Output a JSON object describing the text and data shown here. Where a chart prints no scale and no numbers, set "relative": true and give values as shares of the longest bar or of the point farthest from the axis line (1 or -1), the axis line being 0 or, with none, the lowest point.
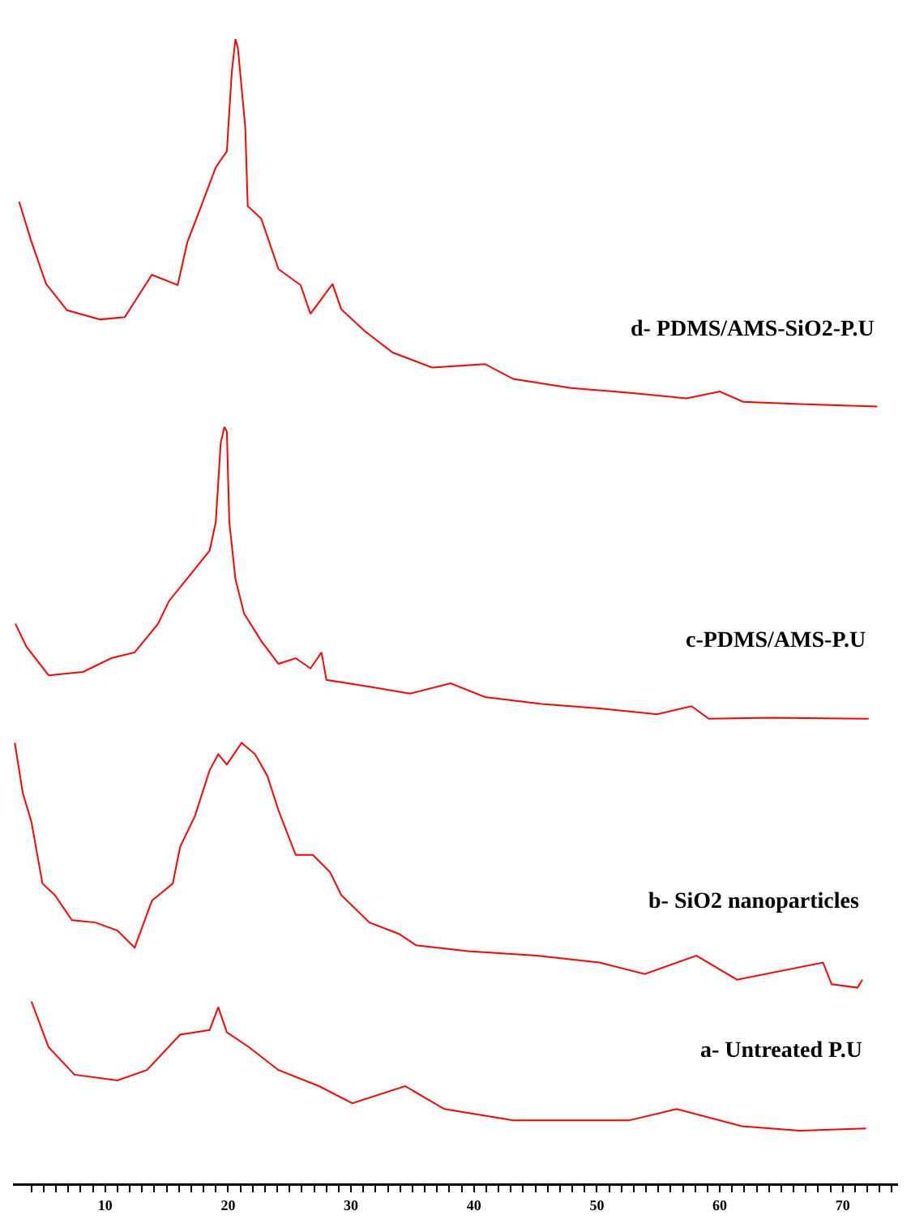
{
  "chart_data": {
    "type": "line",
    "relative": true,
    "grid": false,
    "legend": false,
    "marker": "none",
    "line_style": "solid",
    "xlim": [
      2.5,
      74.5
    ],
    "xticks": [
      {
        "value": 4,
        "label": null
      },
      {
        "value": 5,
        "label": null
      },
      {
        "value": 6,
        "label": null
      },
      {
        "value": 7,
        "label": null
      },
      {
        "value": 8,
        "label": null
      },
      {
        "value": 9,
        "label": null
      },
      10,
      {
        "value": 11,
        "label": null
      },
      {
        "value": 12,
        "label": null
      },
      {
        "value": 13,
        "label": null
      },
      {
        "value": 14,
        "label": null
      },
      {
        "value": 15,
        "label": null
      },
      {
        "value": 16,
        "label": null
      },
      {
        "value": 17,
        "label": null
      },
      {
        "value": 18,
        "label": null
      },
      {
        "value": 19,
        "label": null
      },
      20,
      {
        "value": 21,
        "label": null
      },
      {
        "value": 22,
        "label": null
      },
      {
        "value": 23,
        "label": null
      },
      {
        "value": 24,
        "label": null
      },
      {
        "value": 25,
        "label": null
      },
      {
        "value": 26,
        "label": null
      },
      {
        "value": 27,
        "label": null
      },
      {
        "value": 28,
        "label": null
      },
      {
        "value": 29,
        "label": null
      },
      30,
      {
        "value": 31,
        "label": null
      },
      {
        "value": 32,
        "label": null
      },
      {
        "value": 33,
        "label": null
      },
      {
        "value": 34,
        "label": null
      },
      {
        "value": 35,
        "label": null
      },
      {
        "value": 36,
        "label": null
      },
      {
        "value": 37,
        "label": null
      },
      {
        "value": 38,
        "label": null
      },
      {
        "value": 39,
        "label": null
      },
      40,
      {
        "value": 41,
        "label": null
      },
      {
        "value": 42,
        "label": null
      },
      {
        "value": 43,
        "label": null
      },
      {
        "value": 44,
        "label": null
      },
      {
        "value": 45,
        "label": null
      },
      {
        "value": 46,
        "label": null
      },
      {
        "value": 47,
        "label": null
      },
      {
        "value": 48,
        "label": null
      },
      {
        "value": 49,
        "label": null
      },
      50,
      {
        "value": 51,
        "label": null
      },
      {
        "value": 52,
        "label": null
      },
      {
        "value": 53,
        "label": null
      },
      {
        "value": 54,
        "label": null
      },
      {
        "value": 55,
        "label": null
      },
      {
        "value": 56,
        "label": null
      },
      {
        "value": 57,
        "label": null
      },
      {
        "value": 58,
        "label": null
      },
      {
        "value": 59,
        "label": null
      },
      60,
      {
        "value": 61,
        "label": null
      },
      {
        "value": 62,
        "label": null
      },
      {
        "value": 63,
        "label": null
      },
      {
        "value": 64,
        "label": null
      },
      {
        "value": 65,
        "label": null
      },
      {
        "value": 66,
        "label": null
      },
      {
        "value": 67,
        "label": null
      },
      {
        "value": 68,
        "label": null
      },
      {
        "value": 69,
        "label": null
      },
      70,
      {
        "value": 71,
        "label": null
      },
      {
        "value": 72,
        "label": null
      },
      {
        "value": 73,
        "label": null
      },
      {
        "value": 74,
        "label": null
      }
    ],
    "series": [
      {
        "name": "a- Untreated P.U",
        "color": "#ff0000",
        "x": [
          4.0,
          5.4,
          7.5,
          11.0,
          13.4,
          16.1,
          18.5,
          19.2,
          19.9,
          21.7,
          24.1,
          27.4,
          30.1,
          34.4,
          37.6,
          43.2,
          47.9,
          52.6,
          56.5,
          61.8,
          66.5,
          71.9
        ],
        "values": [
          0.159,
          0.119,
          0.095,
          0.09,
          0.099,
          0.13,
          0.134,
          0.154,
          0.132,
          0.119,
          0.099,
          0.085,
          0.07,
          0.085,
          0.065,
          0.055,
          0.055,
          0.055,
          0.065,
          0.05,
          0.046,
          0.048
        ]
      },
      {
        "name": "b- SiO2 nanoparticles",
        "color": "#ff0000",
        "x": [
          2.65,
          3.3,
          4.0,
          4.9,
          5.9,
          7.3,
          9.2,
          11.0,
          12.4,
          13.8,
          15.5,
          16.1,
          17.3,
          18.5,
          19.2,
          19.9,
          21.1,
          22.2,
          23.2,
          24.1,
          25.5,
          26.9,
          28.3,
          29.2,
          31.5,
          33.9,
          35.3,
          39.5,
          45.1,
          50.2,
          53.9,
          58.1,
          61.4,
          68.4,
          69.1,
          71.2,
          71.6
        ],
        "values": [
          0.385,
          0.341,
          0.316,
          0.262,
          0.252,
          0.23,
          0.228,
          0.221,
          0.206,
          0.247,
          0.262,
          0.294,
          0.321,
          0.361,
          0.375,
          0.366,
          0.385,
          0.375,
          0.356,
          0.326,
          0.287,
          0.287,
          0.272,
          0.252,
          0.228,
          0.218,
          0.208,
          0.203,
          0.199,
          0.193,
          0.183,
          0.199,
          0.178,
          0.193,
          0.174,
          0.171,
          0.178
        ]
      },
      {
        "name": "c-PDMS/AMS-P.U",
        "color": "#ff0000",
        "x": [
          2.7,
          3.6,
          5.4,
          8.2,
          10.5,
          12.4,
          14.3,
          15.2,
          17.0,
          18.5,
          19.0,
          19.4,
          19.7,
          19.9,
          20.1,
          20.6,
          21.3,
          22.7,
          24.1,
          25.5,
          26.7,
          27.6,
          28.0,
          31.5,
          34.8,
          38.1,
          40.9,
          45.5,
          50.2,
          54.9,
          57.7,
          59.1,
          64.2,
          72.1
        ],
        "values": [
          0.489,
          0.469,
          0.444,
          0.447,
          0.459,
          0.464,
          0.489,
          0.509,
          0.533,
          0.553,
          0.578,
          0.647,
          0.661,
          0.657,
          0.578,
          0.528,
          0.498,
          0.474,
          0.454,
          0.459,
          0.45,
          0.464,
          0.44,
          0.434,
          0.428,
          0.437,
          0.425,
          0.419,
          0.415,
          0.41,
          0.417,
          0.406,
          0.407,
          0.406
        ]
      },
      {
        "name": "d- PDMS/AMS-SiO2-P.U",
        "color": "#ff0000",
        "x": [
          3.0,
          4.0,
          5.2,
          6.9,
          9.6,
          11.6,
          13.8,
          15.9,
          16.7,
          17.6,
          19.0,
          19.9,
          20.3,
          20.6,
          20.8,
          21.4,
          21.6,
          22.7,
          24.1,
          25.9,
          26.7,
          28.5,
          29.2,
          31.1,
          33.4,
          36.6,
          40.9,
          43.2,
          47.9,
          52.6,
          57.3,
          60.0,
          61.9,
          66.5,
          72.8
        ],
        "values": [
          0.858,
          0.823,
          0.786,
          0.763,
          0.755,
          0.757,
          0.794,
          0.785,
          0.823,
          0.848,
          0.888,
          0.902,
          0.971,
          1,
          0.992,
          0.923,
          0.854,
          0.843,
          0.799,
          0.785,
          0.76,
          0.786,
          0.764,
          0.745,
          0.726,
          0.713,
          0.716,
          0.703,
          0.695,
          0.691,
          0.686,
          0.692,
          0.683,
          0.681,
          0.679
        ]
      }
    ]
  }
}
